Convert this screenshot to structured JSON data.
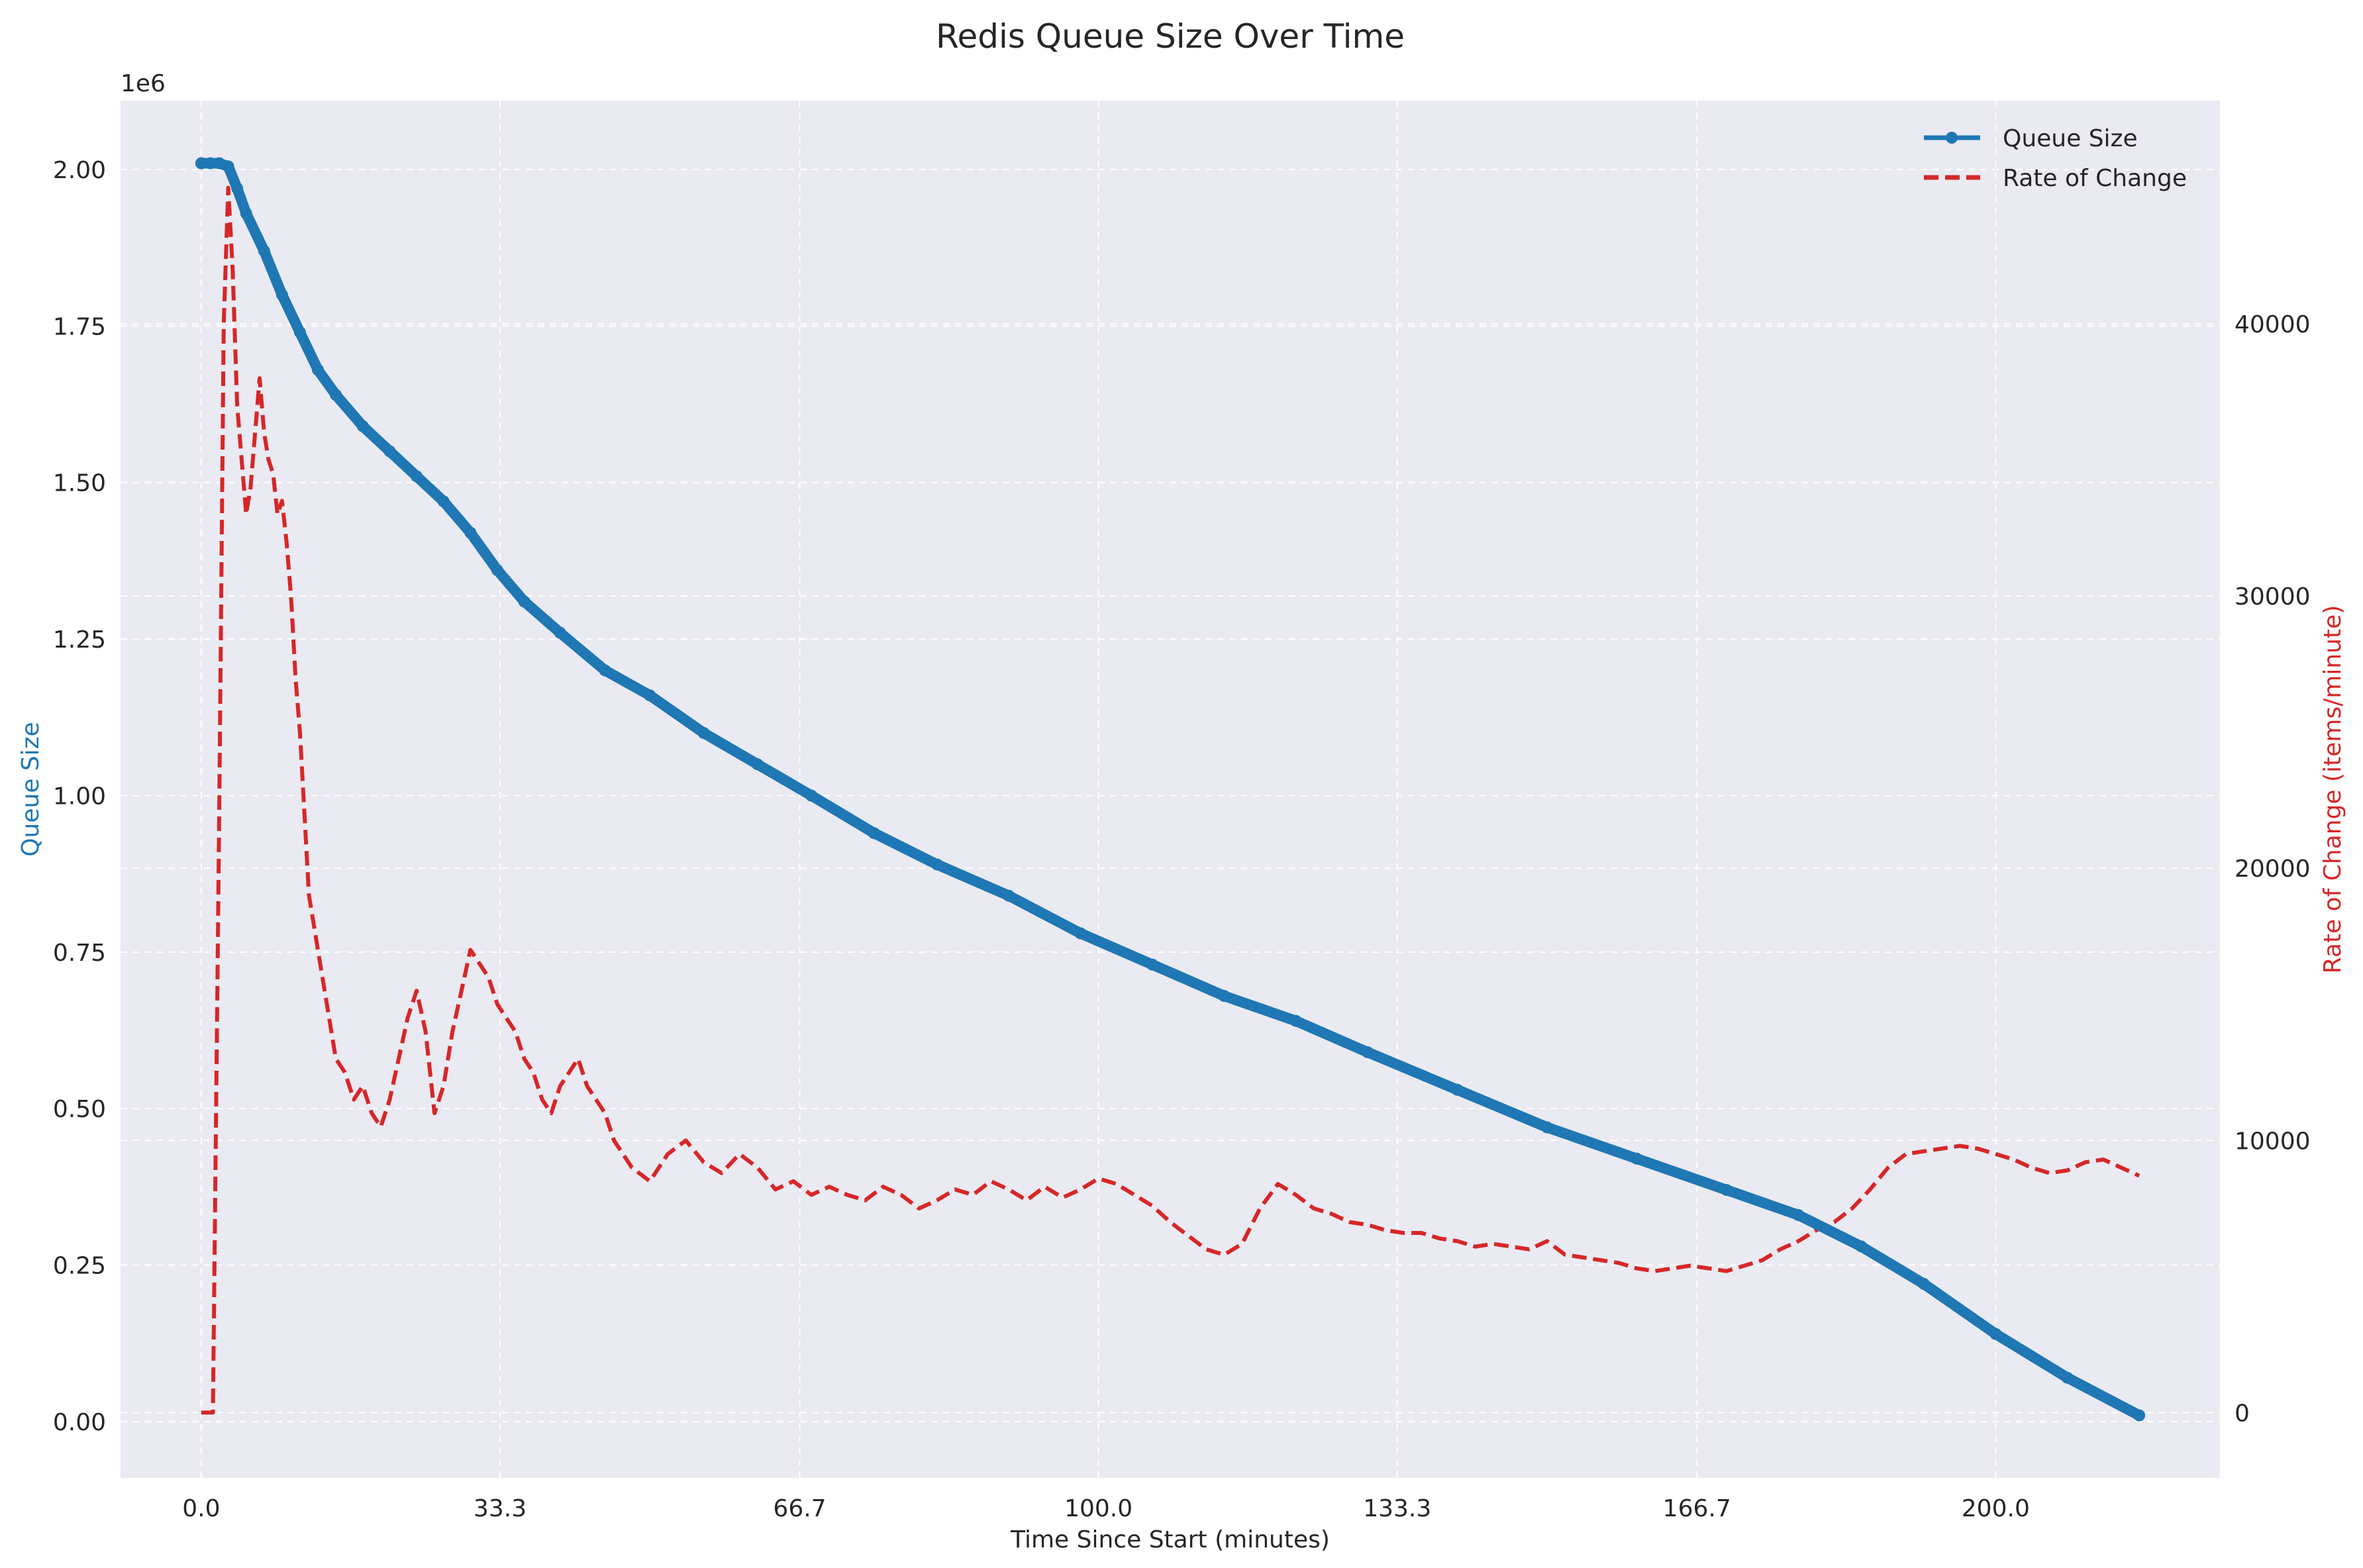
{
  "chart_data": {
    "type": "line",
    "title": "Redis Queue Size Over Time",
    "xlabel": "Time Since Start (minutes)",
    "ylabel_left": "Queue Size",
    "ylabel_right": "Rate of Change (items/minute)",
    "left_axis_multiplier": "1e6",
    "xlim": [
      -9,
      225
    ],
    "ylim_left": [
      -0.09,
      2.11
    ],
    "ylim_right": [
      -2400,
      48200
    ],
    "x_ticks": [
      0,
      33.3,
      66.7,
      100.0,
      133.3,
      166.7,
      200.0
    ],
    "x_tick_labels": [
      "0.0",
      "33.3",
      "66.7",
      "100.0",
      "133.3",
      "166.7",
      "200.0"
    ],
    "y_left_ticks": [
      0,
      0.25,
      0.5,
      0.75,
      1.0,
      1.25,
      1.5,
      1.75,
      2.0
    ],
    "y_left_tick_labels": [
      "0.00",
      "0.25",
      "0.50",
      "0.75",
      "1.00",
      "1.25",
      "1.50",
      "1.75",
      "2.00"
    ],
    "y_right_ticks": [
      0,
      10000,
      20000,
      30000,
      40000
    ],
    "y_right_tick_labels": [
      "0",
      "10000",
      "20000",
      "30000",
      "40000"
    ],
    "grid": true,
    "legend_position": "top-right",
    "series": [
      {
        "name": "Queue Size",
        "axis": "left",
        "color": "#1f77b4",
        "style": "solid-markers",
        "x": [
          0,
          1,
          2,
          3,
          4,
          5,
          7,
          9,
          11,
          13,
          15,
          18,
          21,
          24,
          27,
          30,
          33,
          36,
          40,
          45,
          50,
          56,
          62,
          68,
          75,
          82,
          90,
          98,
          106,
          114,
          122,
          130,
          140,
          150,
          160,
          170,
          178,
          185,
          192,
          200,
          208,
          216
        ],
        "y": [
          2.01,
          2.01,
          2.01,
          2.005,
          1.97,
          1.93,
          1.87,
          1.8,
          1.74,
          1.68,
          1.64,
          1.59,
          1.55,
          1.51,
          1.47,
          1.42,
          1.36,
          1.31,
          1.26,
          1.2,
          1.16,
          1.1,
          1.05,
          1.0,
          0.94,
          0.89,
          0.84,
          0.78,
          0.73,
          0.68,
          0.64,
          0.59,
          0.53,
          0.47,
          0.42,
          0.37,
          0.33,
          0.28,
          0.22,
          0.14,
          0.07,
          0.01
        ]
      },
      {
        "name": "Rate of Change",
        "axis": "right",
        "color": "#d62728",
        "style": "dashed",
        "x": [
          0,
          1,
          1.3,
          2,
          2.5,
          3,
          3.5,
          4,
          4.5,
          5,
          5.5,
          6,
          6.5,
          7,
          7.5,
          8,
          8.5,
          9,
          9.5,
          10,
          10.5,
          11,
          11.5,
          12,
          12.5,
          13,
          14,
          15,
          16,
          17,
          18,
          19,
          20,
          21,
          22,
          23,
          24,
          25,
          26,
          27,
          28,
          29,
          30,
          31,
          32,
          33,
          34,
          35,
          36,
          37,
          38,
          39,
          40,
          41,
          42,
          43,
          44,
          45,
          46,
          47,
          48,
          50,
          52,
          54,
          56,
          58,
          60,
          62,
          64,
          66,
          68,
          70,
          72,
          74,
          76,
          78,
          80,
          82,
          84,
          86,
          88,
          90,
          92,
          94,
          96,
          98,
          100,
          102,
          104,
          106,
          108,
          110,
          112,
          114,
          116,
          118,
          120,
          122,
          124,
          126,
          128,
          130,
          132,
          134,
          136,
          138,
          140,
          142,
          144,
          146,
          148,
          150,
          152,
          154,
          156,
          158,
          160,
          162,
          164,
          166,
          168,
          170,
          172,
          174,
          176,
          178,
          180,
          182,
          184,
          186,
          188,
          190,
          192,
          194,
          196,
          198,
          200,
          202,
          204,
          206,
          208,
          210,
          212,
          214,
          216
        ],
        "y": [
          0,
          0,
          0,
          22000,
          40000,
          45000,
          42000,
          37000,
          35000,
          33000,
          34000,
          36000,
          38000,
          36000,
          35000,
          34500,
          33000,
          33500,
          32000,
          30000,
          27000,
          25000,
          22000,
          19000,
          18000,
          17000,
          15000,
          13000,
          12500,
          11500,
          12000,
          11000,
          10500,
          11500,
          13000,
          14500,
          15500,
          14000,
          11000,
          12000,
          14000,
          15500,
          17000,
          16500,
          16000,
          15000,
          14500,
          14000,
          13000,
          12500,
          11500,
          11000,
          12000,
          12500,
          13000,
          12000,
          11500,
          11000,
          10000,
          9500,
          9000,
          8500,
          9500,
          10000,
          9200,
          8800,
          9500,
          9000,
          8200,
          8500,
          8000,
          8300,
          8000,
          7800,
          8300,
          8000,
          7500,
          7800,
          8200,
          8000,
          8500,
          8200,
          7800,
          8300,
          7900,
          8200,
          8600,
          8400,
          8000,
          7600,
          7000,
          6500,
          6000,
          5800,
          6200,
          7500,
          8400,
          8000,
          7500,
          7300,
          7000,
          6900,
          6700,
          6600,
          6600,
          6400,
          6300,
          6100,
          6200,
          6100,
          6000,
          6300,
          5800,
          5700,
          5600,
          5500,
          5300,
          5200,
          5300,
          5400,
          5300,
          5200,
          5400,
          5600,
          6000,
          6300,
          6700,
          7000,
          7500,
          8200,
          9000,
          9500,
          9600,
          9700,
          9800,
          9700,
          9500,
          9300,
          9000,
          8800,
          8900,
          9200,
          9300,
          9000,
          8700
        ]
      }
    ]
  },
  "colors": {
    "plot_background": "#eaeaf2",
    "grid": "#ffffff",
    "queue": "#1f77b4",
    "rate": "#d62728",
    "text": "#262626"
  }
}
